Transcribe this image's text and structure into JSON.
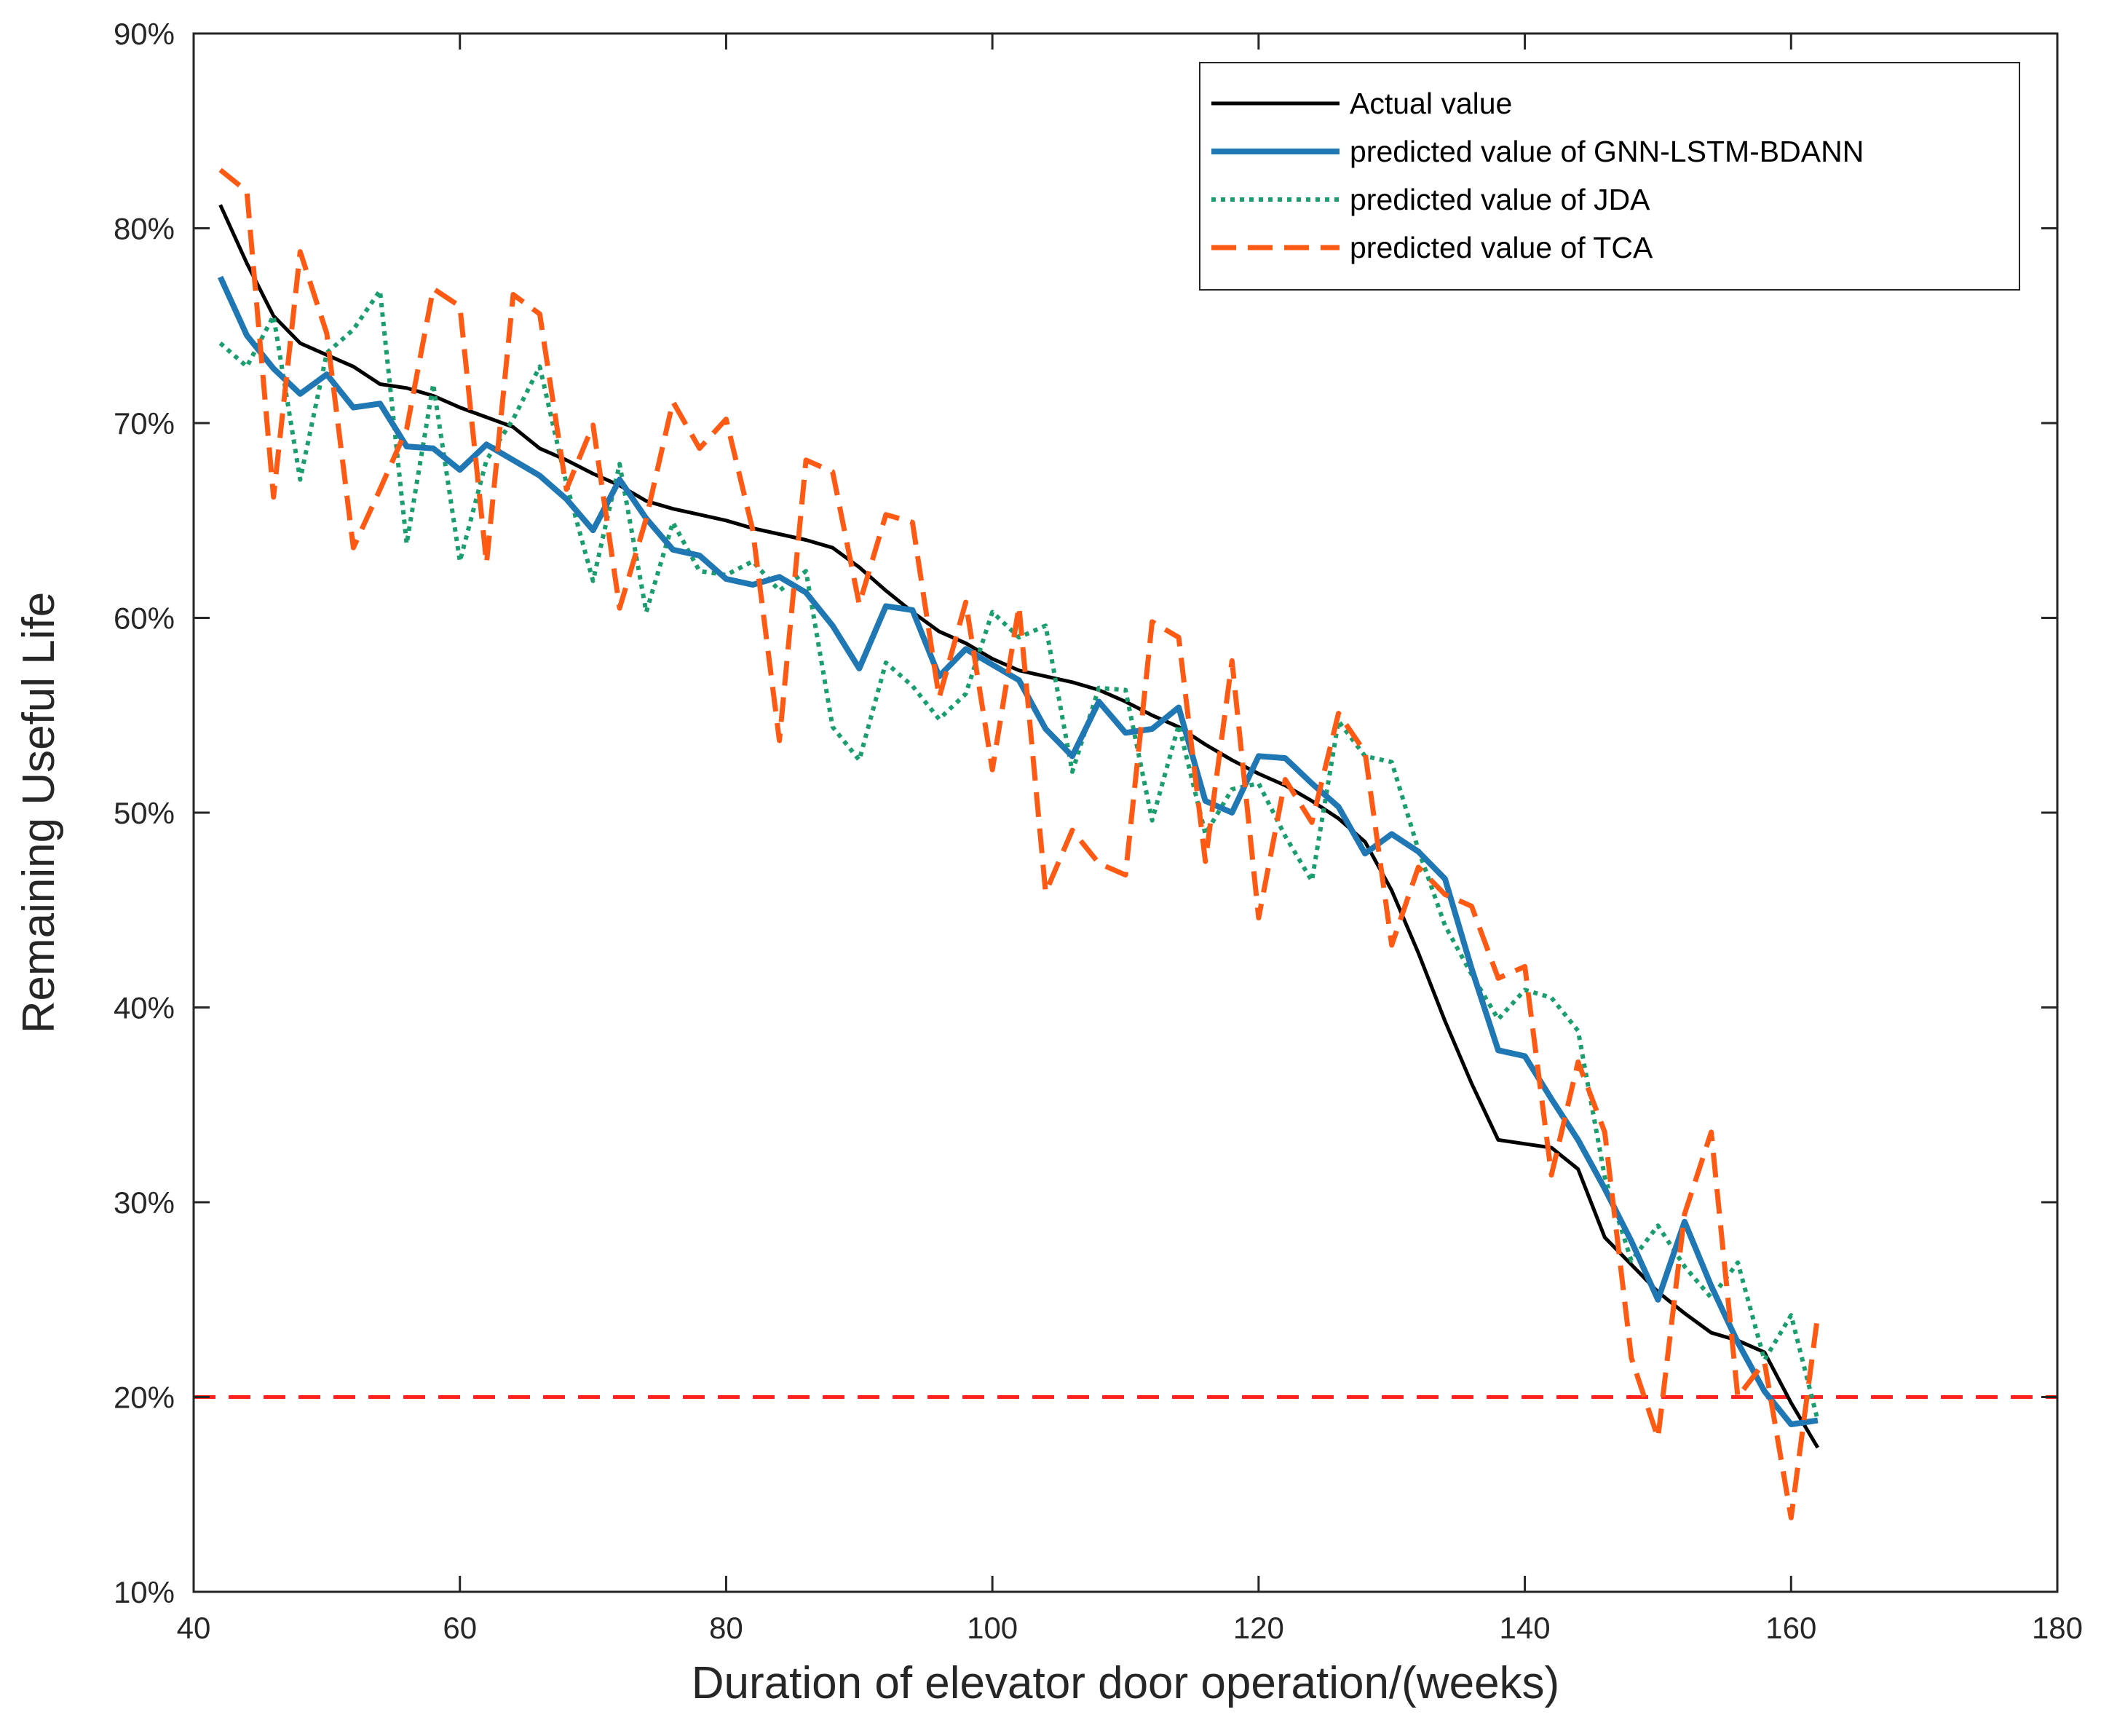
{
  "chart_data": {
    "type": "line",
    "title": "",
    "xlabel": "Duration of elevator door operation/(weeks)",
    "ylabel": "Remaining Useful Life",
    "xlim": [
      40,
      180
    ],
    "ylim": [
      10,
      90
    ],
    "xticks": [
      40,
      60,
      80,
      100,
      120,
      140,
      160,
      180
    ],
    "xtick_labels": [
      "40",
      "60",
      "80",
      "100",
      "120",
      "140",
      "160",
      "180"
    ],
    "yticks": [
      10,
      20,
      30,
      40,
      50,
      60,
      70,
      80,
      90
    ],
    "ytick_labels": [
      "10%",
      "20%",
      "30%",
      "40%",
      "50%",
      "60%",
      "70%",
      "80%",
      "90%"
    ],
    "grid": false,
    "legend_position": "top-right",
    "threshold": {
      "y": 20,
      "color": "#ff2020",
      "style": "dashed"
    },
    "series": [
      {
        "name": "Actual value",
        "color": "#000000",
        "style": "solid",
        "x": [
          42,
          44,
          46,
          48,
          50,
          52,
          54,
          56,
          58,
          60,
          62,
          64,
          66,
          68,
          70,
          72,
          74,
          76,
          78,
          80,
          82,
          84,
          86,
          88,
          90,
          92,
          94,
          96,
          98,
          100,
          102,
          104,
          106,
          108,
          110,
          112,
          114,
          116,
          118,
          120,
          122,
          124,
          126,
          128,
          130,
          132,
          134,
          136,
          138,
          140,
          142,
          144,
          146,
          148,
          150,
          152,
          154,
          156,
          158,
          160,
          162
        ],
        "y": [
          81.2,
          78.2,
          75.5,
          74.1,
          73.5,
          72.9,
          72,
          71.8,
          71.4,
          70.8,
          70.3,
          69.8,
          68.7,
          68.1,
          67.4,
          66.8,
          66,
          65.6,
          65.3,
          65,
          64.6,
          64.3,
          64,
          63.6,
          62.6,
          61.4,
          60.3,
          59.3,
          58.7,
          57.9,
          57.3,
          57,
          56.7,
          56.3,
          55.7,
          55,
          54.4,
          53.5,
          52.7,
          52,
          51.4,
          50.6,
          49.7,
          48.5,
          46,
          42.8,
          39.3,
          36.1,
          33.2,
          33,
          32.8,
          31.7,
          28.2,
          26.8,
          25.4,
          24.3,
          23.3,
          22.9,
          22.3,
          19.7,
          17.4
        ]
      },
      {
        "name": "predicted value of GNN-LSTM-BDANN",
        "color": "#1f77b4",
        "style": "solid",
        "x": [
          42,
          44,
          46,
          48,
          50,
          52,
          54,
          56,
          58,
          60,
          62,
          64,
          66,
          68,
          70,
          72,
          74,
          76,
          78,
          80,
          82,
          84,
          86,
          88,
          90,
          92,
          94,
          96,
          98,
          100,
          102,
          104,
          106,
          108,
          110,
          112,
          114,
          116,
          118,
          120,
          122,
          124,
          126,
          128,
          130,
          132,
          134,
          136,
          138,
          140,
          142,
          144,
          146,
          148,
          150,
          152,
          154,
          156,
          158,
          160,
          162
        ],
        "y": [
          77.5,
          74.5,
          72.8,
          71.5,
          72.5,
          70.8,
          71,
          68.8,
          68.7,
          67.6,
          68.9,
          68.1,
          67.3,
          66.1,
          64.5,
          67.1,
          65.1,
          63.5,
          63.2,
          62,
          61.7,
          62.1,
          61.3,
          59.6,
          57.4,
          60.6,
          60.4,
          57,
          58.4,
          57.6,
          56.8,
          54.3,
          52.9,
          55.7,
          54.1,
          54.3,
          55.4,
          50.6,
          50,
          52.9,
          52.8,
          51.5,
          50.3,
          47.9,
          48.9,
          48,
          46.6,
          42,
          37.8,
          37.5,
          35.3,
          33.2,
          30.7,
          28,
          25,
          29,
          25.7,
          22.8,
          20.3,
          18.6,
          18.8
        ]
      },
      {
        "name": "predicted value of JDA",
        "color": "#1a9e6e",
        "style": "dotted",
        "x": [
          42,
          44,
          46,
          48,
          50,
          52,
          54,
          56,
          58,
          60,
          62,
          64,
          66,
          68,
          70,
          72,
          74,
          76,
          78,
          80,
          82,
          84,
          86,
          88,
          90,
          92,
          94,
          96,
          98,
          100,
          102,
          104,
          106,
          108,
          110,
          112,
          114,
          116,
          118,
          120,
          122,
          124,
          126,
          128,
          130,
          132,
          134,
          136,
          138,
          140,
          142,
          144,
          146,
          148,
          150,
          152,
          154,
          156,
          158,
          160,
          162
        ],
        "y": [
          74.1,
          72.9,
          75.5,
          67.1,
          73.6,
          74.8,
          76.8,
          63.8,
          72,
          62.9,
          68.1,
          70.2,
          72.9,
          66.9,
          61.9,
          67.9,
          60.3,
          64.9,
          62.4,
          62.2,
          62.9,
          61.4,
          62.4,
          54.4,
          52.7,
          57.7,
          56.5,
          54.8,
          56.1,
          60.3,
          59,
          59.6,
          52.1,
          56.4,
          56.3,
          49.6,
          54.5,
          48.9,
          51.2,
          51.5,
          48.8,
          46.5,
          54.7,
          52.9,
          52.6,
          48.1,
          44.2,
          41.7,
          39.4,
          40.9,
          40.5,
          38.8,
          31.3,
          27,
          28.8,
          26.7,
          25.1,
          26.9,
          21.9,
          24.2,
          18.8
        ]
      },
      {
        "name": "predicted value of TCA",
        "color": "#ff5a14",
        "style": "dashed",
        "x": [
          42,
          44,
          46,
          48,
          50,
          52,
          54,
          56,
          58,
          60,
          62,
          64,
          66,
          68,
          70,
          72,
          74,
          76,
          78,
          80,
          82,
          84,
          86,
          88,
          90,
          92,
          94,
          96,
          98,
          100,
          102,
          104,
          106,
          108,
          110,
          112,
          114,
          116,
          118,
          120,
          122,
          124,
          126,
          128,
          130,
          132,
          134,
          136,
          138,
          140,
          142,
          144,
          146,
          148,
          150,
          152,
          154,
          156,
          158,
          160,
          162
        ],
        "y": [
          83,
          81.9,
          66.2,
          78.8,
          74.6,
          63.6,
          66.6,
          69.7,
          76.9,
          76,
          62.8,
          76.6,
          75.6,
          66.6,
          69.9,
          60.5,
          65.1,
          71.1,
          68.7,
          70.2,
          64.5,
          53.7,
          68.1,
          67.5,
          60.7,
          65.3,
          64.9,
          55.9,
          60.8,
          52.2,
          60.6,
          45.9,
          49.1,
          47.4,
          46.8,
          59.8,
          59,
          47.5,
          57.8,
          44.6,
          51.7,
          49.5,
          55.1,
          53.1,
          43.2,
          47.2,
          45.8,
          45.2,
          41.5,
          42.1,
          31.4,
          37.2,
          33.6,
          22,
          17.9,
          29.4,
          33.6,
          20,
          21.8,
          13.8,
          24.2
        ]
      }
    ]
  }
}
